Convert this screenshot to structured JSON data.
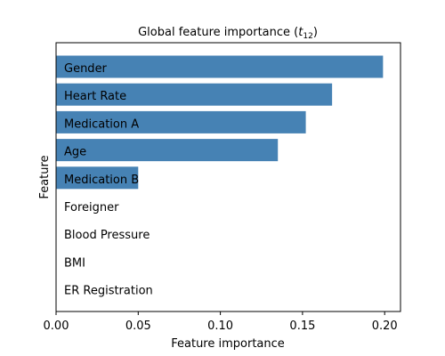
{
  "chart_data": {
    "type": "bar",
    "orientation": "horizontal",
    "title_prefix": "Global feature importance (",
    "title_var": "t",
    "title_sub": "12",
    "title_suffix": ")",
    "xlabel": "Feature importance",
    "ylabel": "Feature",
    "xlim": [
      0,
      0.21
    ],
    "xticks": [
      "0.00",
      "0.05",
      "0.10",
      "0.15",
      "0.20"
    ],
    "categories": [
      "Gender",
      "Heart Rate",
      "Medication A",
      "Age",
      "Medication B",
      "Foreigner",
      "Blood Pressure",
      "BMI",
      "ER Registration"
    ],
    "values": [
      0.199,
      0.168,
      0.152,
      0.135,
      0.05,
      0,
      0,
      0,
      0
    ],
    "bar_color": "#4682b4",
    "grid": false
  }
}
